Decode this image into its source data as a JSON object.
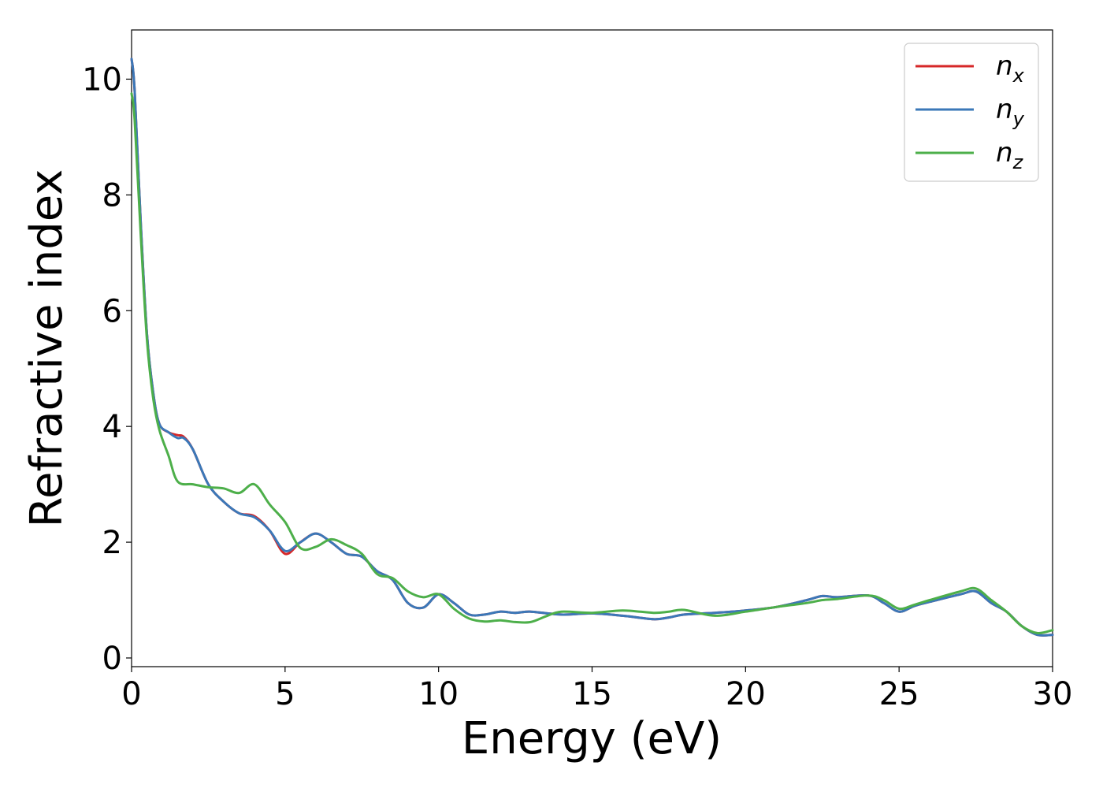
{
  "chart_data": {
    "type": "line",
    "title": "",
    "xlabel": "Energy (eV)",
    "ylabel": "Refractive index",
    "xlim": [
      0,
      30
    ],
    "ylim": [
      -0.15,
      10.85
    ],
    "xticks": [
      0,
      5,
      10,
      15,
      20,
      25,
      30
    ],
    "yticks": [
      0,
      2,
      4,
      6,
      8,
      10
    ],
    "grid": false,
    "legend_position": "top-right",
    "series": [
      {
        "name": "n",
        "sub": "x",
        "color": "#d62728",
        "x": [
          0,
          0.1,
          0.3,
          0.5,
          0.7,
          0.9,
          1.2,
          1.5,
          1.7,
          2.0,
          2.5,
          3.0,
          3.5,
          4.0,
          4.5,
          5.0,
          5.5,
          6.0,
          6.5,
          7.0,
          7.5,
          8.0,
          8.5,
          9.0,
          9.5,
          10.0,
          10.5,
          11.0,
          11.5,
          12.0,
          12.5,
          13.0,
          14.0,
          15.0,
          16.0,
          17.0,
          17.5,
          18.0,
          19.0,
          20.0,
          21.0,
          22.0,
          22.5,
          23.0,
          24.0,
          24.5,
          25.0,
          25.5,
          26.0,
          27.0,
          27.5,
          28.0,
          28.5,
          29.0,
          29.5,
          30.0
        ],
        "y": [
          10.35,
          9.8,
          7.5,
          5.6,
          4.6,
          4.05,
          3.9,
          3.85,
          3.82,
          3.6,
          3.0,
          2.7,
          2.5,
          2.45,
          2.2,
          1.8,
          2.0,
          2.15,
          2.0,
          1.8,
          1.75,
          1.5,
          1.35,
          0.95,
          0.87,
          1.1,
          0.95,
          0.75,
          0.75,
          0.8,
          0.78,
          0.8,
          0.75,
          0.77,
          0.73,
          0.67,
          0.7,
          0.75,
          0.78,
          0.82,
          0.88,
          1.0,
          1.07,
          1.05,
          1.08,
          0.95,
          0.8,
          0.9,
          0.97,
          1.1,
          1.15,
          0.95,
          0.8,
          0.55,
          0.4,
          0.4
        ]
      },
      {
        "name": "n",
        "sub": "y",
        "color": "#3b78b8",
        "x": [
          0,
          0.1,
          0.3,
          0.5,
          0.7,
          0.9,
          1.2,
          1.5,
          1.7,
          2.0,
          2.5,
          3.0,
          3.5,
          4.0,
          4.5,
          5.0,
          5.5,
          6.0,
          6.5,
          7.0,
          7.5,
          8.0,
          8.5,
          9.0,
          9.5,
          10.0,
          10.5,
          11.0,
          11.5,
          12.0,
          12.5,
          13.0,
          14.0,
          15.0,
          16.0,
          17.0,
          17.5,
          18.0,
          19.0,
          20.0,
          21.0,
          22.0,
          22.5,
          23.0,
          24.0,
          24.5,
          25.0,
          25.5,
          26.0,
          27.0,
          27.5,
          28.0,
          28.5,
          29.0,
          29.5,
          30.0
        ],
        "y": [
          10.35,
          9.8,
          7.5,
          5.6,
          4.6,
          4.05,
          3.9,
          3.8,
          3.8,
          3.6,
          3.0,
          2.7,
          2.5,
          2.43,
          2.2,
          1.85,
          2.0,
          2.15,
          2.0,
          1.8,
          1.75,
          1.5,
          1.35,
          0.95,
          0.87,
          1.1,
          0.95,
          0.75,
          0.75,
          0.8,
          0.78,
          0.8,
          0.75,
          0.77,
          0.73,
          0.67,
          0.7,
          0.75,
          0.78,
          0.82,
          0.88,
          1.0,
          1.07,
          1.05,
          1.08,
          0.95,
          0.8,
          0.9,
          0.97,
          1.1,
          1.15,
          0.95,
          0.8,
          0.55,
          0.4,
          0.4
        ]
      },
      {
        "name": "n",
        "sub": "z",
        "color": "#4daf4a",
        "x": [
          0,
          0.1,
          0.3,
          0.5,
          0.7,
          0.9,
          1.2,
          1.5,
          2.0,
          2.5,
          3.0,
          3.5,
          4.0,
          4.5,
          5.0,
          5.5,
          6.0,
          6.5,
          7.0,
          7.5,
          8.0,
          8.5,
          9.0,
          9.5,
          10.0,
          10.5,
          11.0,
          11.5,
          12.0,
          12.5,
          13.0,
          13.5,
          14.0,
          15.0,
          16.0,
          17.0,
          17.5,
          18.0,
          19.0,
          20.0,
          21.0,
          22.0,
          22.5,
          23.0,
          24.0,
          24.5,
          25.0,
          25.5,
          26.0,
          27.0,
          27.5,
          28.0,
          28.5,
          29.0,
          29.5,
          30.0
        ],
        "y": [
          9.75,
          9.3,
          7.3,
          5.5,
          4.5,
          3.95,
          3.5,
          3.05,
          3.0,
          2.95,
          2.93,
          2.85,
          3.0,
          2.65,
          2.35,
          1.9,
          1.92,
          2.05,
          1.95,
          1.8,
          1.45,
          1.38,
          1.15,
          1.05,
          1.1,
          0.85,
          0.68,
          0.63,
          0.65,
          0.62,
          0.62,
          0.72,
          0.8,
          0.78,
          0.82,
          0.78,
          0.8,
          0.83,
          0.73,
          0.8,
          0.88,
          0.95,
          1.0,
          1.02,
          1.08,
          1.0,
          0.85,
          0.92,
          1.0,
          1.15,
          1.2,
          1.0,
          0.8,
          0.55,
          0.43,
          0.48
        ]
      }
    ]
  }
}
